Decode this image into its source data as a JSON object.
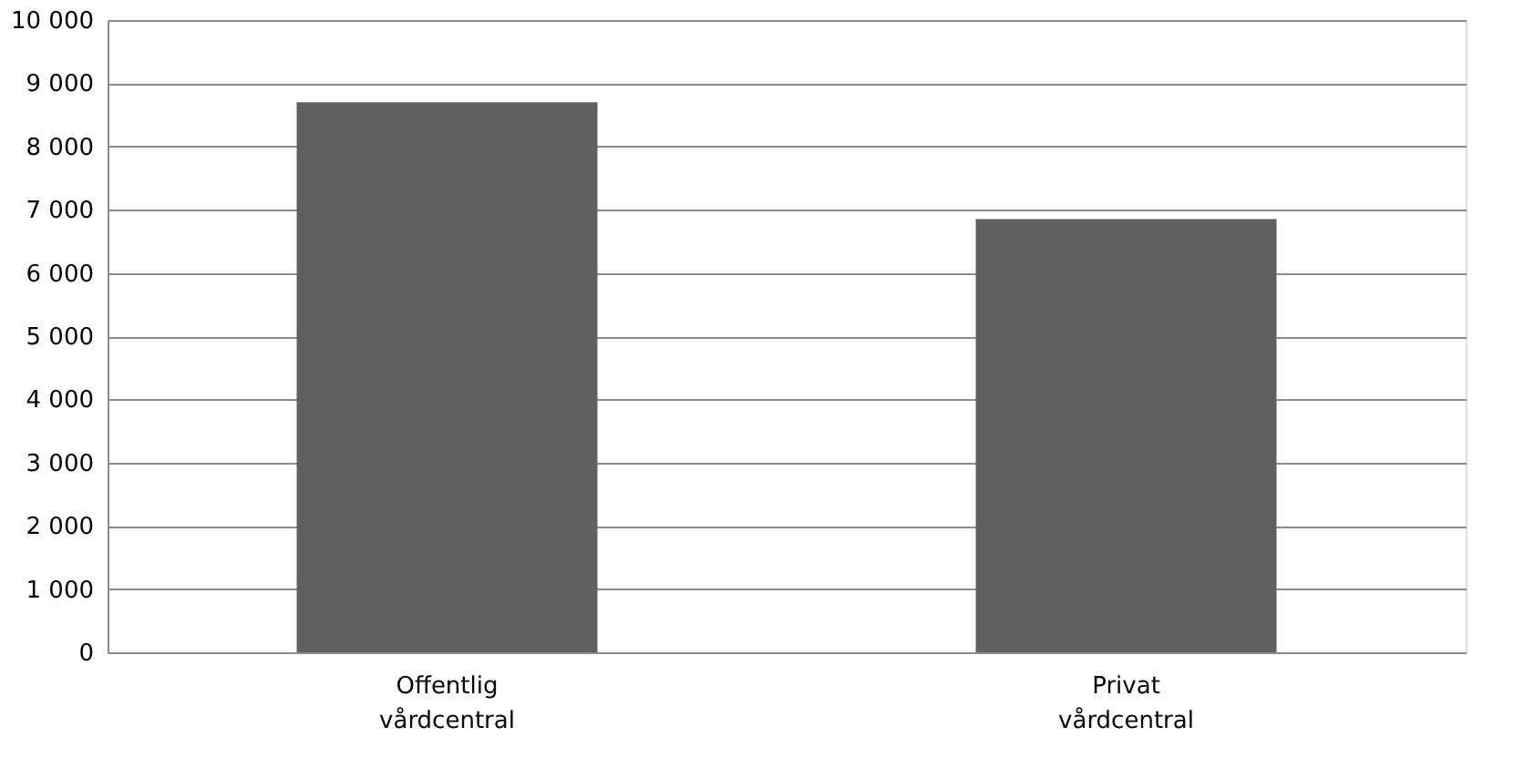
{
  "chart_data": {
    "type": "bar",
    "categories": [
      "Offentlig vårdcentral",
      "Privat vårdcentral"
    ],
    "values": [
      8700,
      6850
    ],
    "color": "#606060",
    "ylim": [
      0,
      10000
    ],
    "yticks": [
      0,
      {
        "value": 1000,
        "label": "1 000"
      },
      {
        "value": 2000,
        "label": "2 000"
      },
      {
        "value": 3000,
        "label": "3 000"
      },
      {
        "value": 4000,
        "label": "4 000"
      },
      {
        "value": 5000,
        "label": "5 000"
      },
      {
        "value": 6000,
        "label": "6 000"
      },
      {
        "value": 7000,
        "label": "7 000"
      },
      {
        "value": 8000,
        "label": "8 000"
      },
      {
        "value": 9000,
        "label": "9 000"
      },
      {
        "value": 10000,
        "label": "10 000"
      }
    ],
    "grid": "y"
  }
}
